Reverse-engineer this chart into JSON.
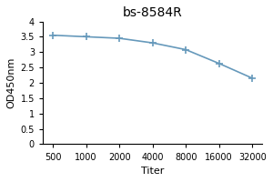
{
  "title": "bs-8584R",
  "xlabel": "Titer",
  "ylabel": "OD450nm",
  "x_labels": [
    "500",
    "1000",
    "2000",
    "4000",
    "8000",
    "16000",
    "32000"
  ],
  "x_values": [
    500,
    1000,
    2000,
    4000,
    8000,
    16000,
    32000
  ],
  "y_values": [
    3.55,
    3.5,
    3.45,
    3.3,
    3.08,
    2.63,
    2.15
  ],
  "ylim": [
    0,
    4
  ],
  "yticks": [
    0,
    0.5,
    1,
    1.5,
    2,
    2.5,
    3,
    3.5,
    4
  ],
  "line_color": "#6699bb",
  "marker": "+",
  "marker_color": "#6699bb",
  "title_fontsize": 10,
  "label_fontsize": 8,
  "tick_fontsize": 7,
  "background_color": "#ffffff"
}
